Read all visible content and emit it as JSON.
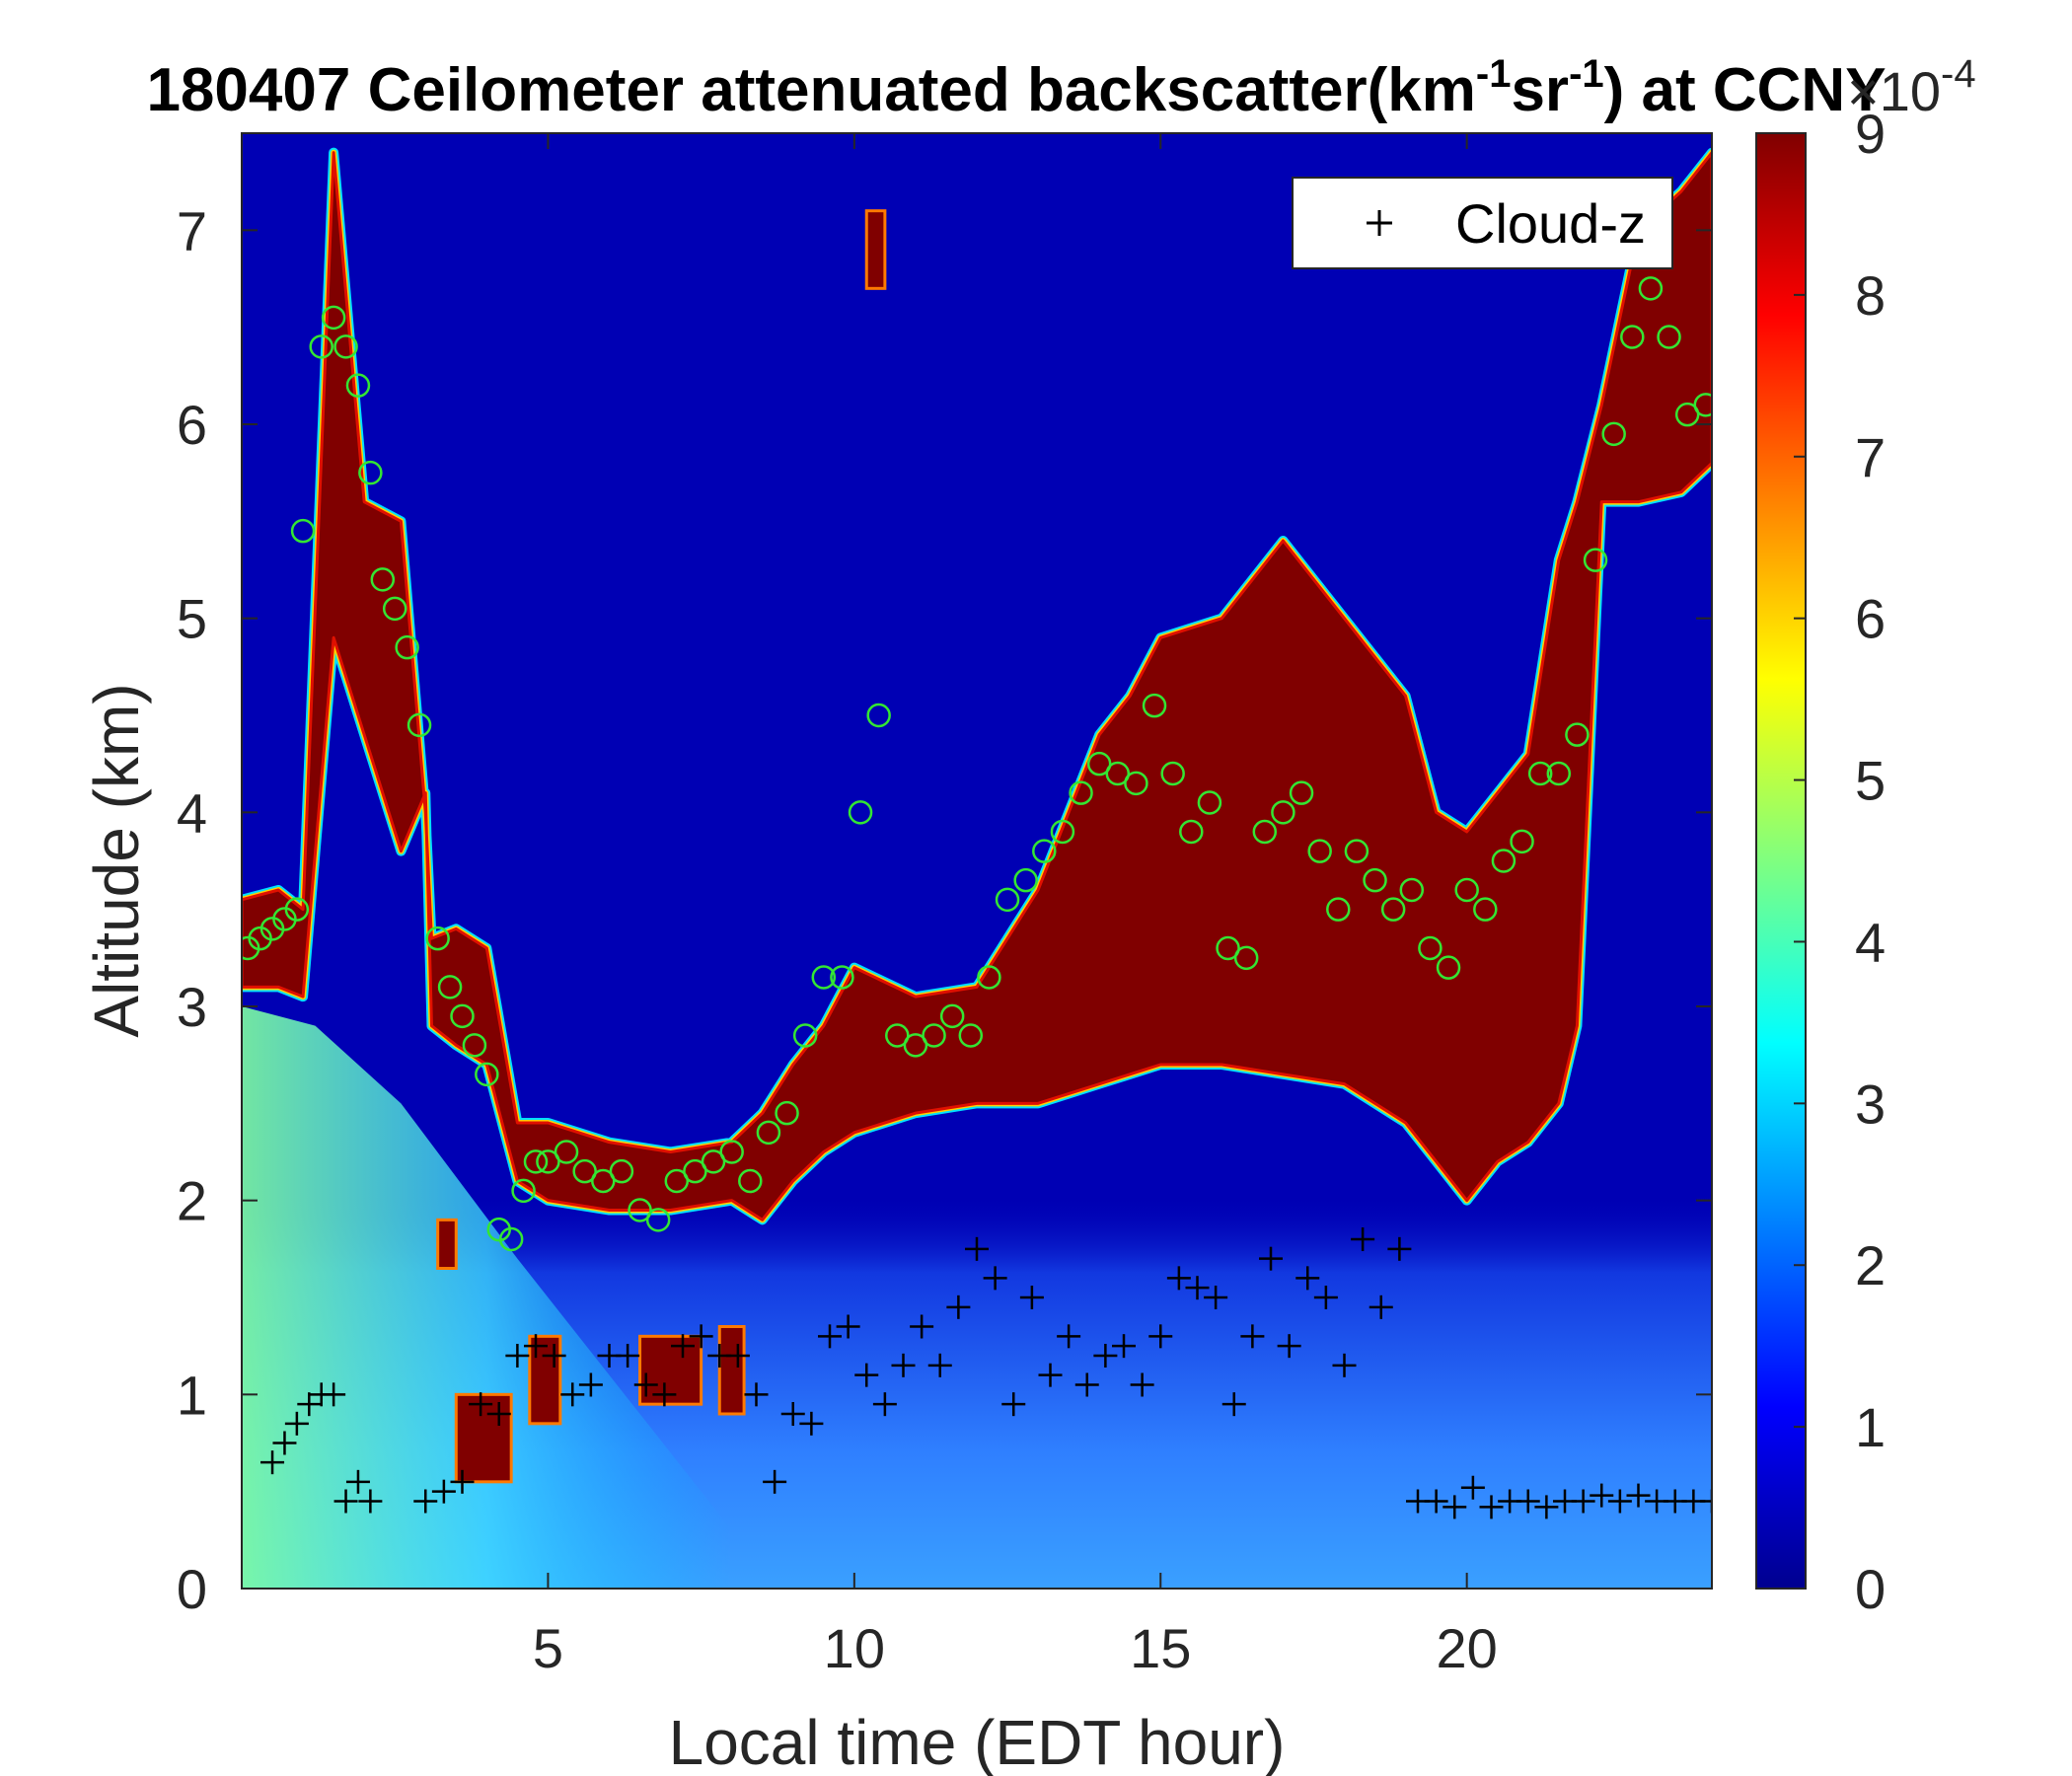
{
  "chart_data": {
    "type": "heatmap",
    "title": {
      "date": "180407",
      "main": " Ceilometer attenuated backscatter(km",
      "sup1": "-1",
      "mid": "sr",
      "sup2": "-1",
      "end": ") at CCNY"
    },
    "xlabel": "Local time (EDT hour)",
    "ylabel": "Altitude (km)",
    "xlim": [
      0,
      24
    ],
    "ylim": [
      0,
      7.5
    ],
    "x_ticks": [
      "5",
      "10",
      "15",
      "20"
    ],
    "y_ticks": [
      "0",
      "1",
      "2",
      "3",
      "4",
      "5",
      "6",
      "7"
    ],
    "colorbar": {
      "colormap": "jet",
      "range": [
        0,
        9
      ],
      "ticks": [
        "0",
        "1",
        "2",
        "3",
        "4",
        "5",
        "6",
        "7",
        "8",
        "9"
      ],
      "multiplier_base": "×10",
      "multiplier_exp": "-4"
    },
    "legend": {
      "placement": "top-right",
      "entries": [
        "Cloud-z"
      ]
    },
    "cloud_layer_km": {
      "x": [
        0,
        0.6,
        1.0,
        1.5,
        2.0,
        2.6,
        3.0,
        3.1,
        3.5,
        4.0,
        4.5,
        5.0,
        6.0,
        7.0,
        8.0,
        8.5,
        9.0,
        9.5,
        10.0,
        11.0,
        12.0,
        13.0,
        14.0,
        14.5,
        15.0,
        16.0,
        17.0,
        18.0,
        19.0,
        19.5,
        20.0,
        20.5,
        21.0,
        21.5,
        21.8,
        22.2,
        22.8,
        23.5,
        24.0
      ],
      "bottom": [
        3.1,
        3.1,
        3.05,
        4.9,
        4.4,
        3.8,
        4.1,
        2.9,
        2.8,
        2.7,
        2.1,
        2.0,
        1.95,
        1.95,
        2.0,
        1.9,
        2.1,
        2.25,
        2.35,
        2.45,
        2.5,
        2.5,
        2.6,
        2.65,
        2.7,
        2.7,
        2.65,
        2.6,
        2.4,
        2.2,
        2.0,
        2.2,
        2.3,
        2.5,
        2.9,
        5.6,
        5.6,
        5.65,
        5.8
      ],
      "top": [
        3.55,
        3.6,
        3.5,
        7.4,
        5.6,
        5.5,
        4.0,
        3.35,
        3.4,
        3.3,
        2.4,
        2.4,
        2.3,
        2.25,
        2.3,
        2.45,
        2.7,
        2.9,
        3.2,
        3.05,
        3.1,
        3.6,
        4.4,
        4.6,
        4.9,
        5.0,
        5.4,
        5.0,
        4.6,
        4.0,
        3.9,
        4.1,
        4.3,
        5.3,
        5.6,
        6.1,
        7.0,
        7.2,
        7.4
      ]
    },
    "low_aerosol_patches_km": [
      {
        "x0": 3.2,
        "x1": 3.5,
        "bottom": 1.65,
        "top": 1.9
      },
      {
        "x0": 3.5,
        "x1": 4.4,
        "bottom": 0.55,
        "top": 1.0
      },
      {
        "x0": 4.7,
        "x1": 5.2,
        "bottom": 0.85,
        "top": 1.3
      },
      {
        "x0": 6.5,
        "x1": 7.5,
        "bottom": 0.95,
        "top": 1.3
      },
      {
        "x0": 7.8,
        "x1": 8.2,
        "bottom": 0.9,
        "top": 1.35
      },
      {
        "x0": 10.2,
        "x1": 10.5,
        "bottom": 6.7,
        "top": 7.1
      }
    ],
    "series": [
      {
        "name": "Cloud-z",
        "marker": "plus",
        "x": [
          0.5,
          0.7,
          0.9,
          1.1,
          1.3,
          1.5,
          1.7,
          1.9,
          2.1,
          3.0,
          3.3,
          3.6,
          3.9,
          4.2,
          4.5,
          4.8,
          5.1,
          5.4,
          5.7,
          6.0,
          6.3,
          6.6,
          6.9,
          7.2,
          7.5,
          7.8,
          8.1,
          8.4,
          8.7,
          9.0,
          9.3,
          9.6,
          9.9,
          10.2,
          10.5,
          10.8,
          11.1,
          11.4,
          11.7,
          12.0,
          12.3,
          12.6,
          12.9,
          13.2,
          13.5,
          13.8,
          14.1,
          14.4,
          14.7,
          15.0,
          15.3,
          15.6,
          15.9,
          16.2,
          16.5,
          16.8,
          17.1,
          17.4,
          17.7,
          18.0,
          18.3,
          18.6,
          18.9,
          19.2,
          19.5,
          19.8,
          20.1,
          20.4,
          20.7,
          21.0,
          21.3,
          21.6,
          21.9,
          22.2,
          22.5,
          22.8,
          23.1,
          23.4,
          23.7,
          24.0
        ],
        "y": [
          0.65,
          0.75,
          0.85,
          0.95,
          1.0,
          1.0,
          0.45,
          0.55,
          0.45,
          0.45,
          0.5,
          0.55,
          0.95,
          0.9,
          1.2,
          1.25,
          1.2,
          1.0,
          1.05,
          1.2,
          1.2,
          1.05,
          1.0,
          1.25,
          1.3,
          1.2,
          1.2,
          1.0,
          0.55,
          0.9,
          0.85,
          1.3,
          1.35,
          1.1,
          0.95,
          1.15,
          1.35,
          1.15,
          1.45,
          1.75,
          1.6,
          0.95,
          1.5,
          1.1,
          1.3,
          1.05,
          1.2,
          1.25,
          1.05,
          1.3,
          1.6,
          1.55,
          1.5,
          0.95,
          1.3,
          1.7,
          1.25,
          1.6,
          1.5,
          1.15,
          1.8,
          1.45,
          1.75,
          0.45,
          0.45,
          0.42,
          0.52,
          0.42,
          0.45,
          0.45,
          0.42,
          0.45,
          0.45,
          0.48,
          0.45,
          0.48,
          0.45,
          0.45,
          0.45,
          0.45
        ]
      },
      {
        "name": "",
        "marker": "circle",
        "x": [
          0.1,
          0.3,
          0.5,
          0.7,
          0.9,
          1.0,
          1.3,
          1.5,
          1.7,
          1.9,
          2.1,
          2.3,
          2.5,
          2.7,
          2.9,
          3.2,
          3.4,
          3.6,
          3.8,
          4.0,
          4.2,
          4.4,
          4.6,
          4.8,
          5.0,
          5.3,
          5.6,
          5.9,
          6.2,
          6.5,
          6.8,
          7.1,
          7.4,
          7.7,
          8.0,
          8.3,
          8.6,
          8.9,
          9.2,
          9.5,
          9.8,
          10.1,
          10.4,
          10.7,
          11.0,
          11.3,
          11.6,
          11.9,
          12.2,
          12.5,
          12.8,
          13.1,
          13.4,
          13.7,
          14.0,
          14.3,
          14.6,
          14.9,
          15.2,
          15.5,
          15.8,
          16.1,
          16.4,
          16.7,
          17.0,
          17.3,
          17.6,
          17.9,
          18.2,
          18.5,
          18.8,
          19.1,
          19.4,
          19.7,
          20.0,
          20.3,
          20.6,
          20.9,
          21.2,
          21.5,
          21.8,
          22.1,
          22.4,
          22.7,
          23.0,
          23.3,
          23.6,
          23.9
        ],
        "y": [
          3.3,
          3.35,
          3.4,
          3.45,
          3.5,
          5.45,
          6.4,
          6.55,
          6.4,
          6.2,
          5.75,
          5.2,
          5.05,
          4.85,
          4.45,
          3.35,
          3.1,
          2.95,
          2.8,
          2.65,
          1.85,
          1.8,
          2.05,
          2.2,
          2.2,
          2.25,
          2.15,
          2.1,
          2.15,
          1.95,
          1.9,
          2.1,
          2.15,
          2.2,
          2.25,
          2.1,
          2.35,
          2.45,
          2.85,
          3.15,
          3.15,
          4.0,
          4.5,
          2.85,
          2.8,
          2.85,
          2.95,
          2.85,
          3.15,
          3.55,
          3.65,
          3.8,
          3.9,
          4.1,
          4.25,
          4.2,
          4.15,
          4.55,
          4.2,
          3.9,
          4.05,
          3.3,
          3.25,
          3.9,
          4.0,
          4.1,
          3.8,
          3.5,
          3.8,
          3.65,
          3.5,
          3.6,
          3.3,
          3.2,
          3.6,
          3.5,
          3.75,
          3.85,
          4.2,
          4.2,
          4.4,
          5.3,
          5.95,
          6.45,
          6.7,
          6.45,
          6.05,
          6.1
        ]
      }
    ]
  }
}
